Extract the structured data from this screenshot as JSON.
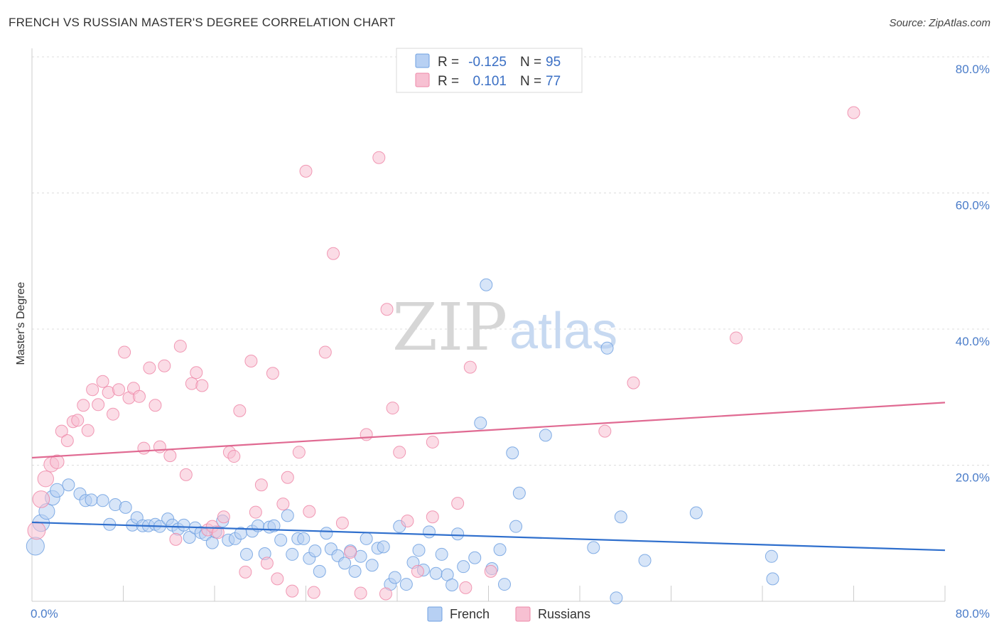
{
  "title": "FRENCH VS RUSSIAN MASTER'S DEGREE CORRELATION CHART",
  "source": "Source: ZipAtlas.com",
  "watermark": {
    "zip": "ZIP",
    "atlas": "atlas"
  },
  "colors": {
    "french": "#6fa0e0",
    "french_fill": "#b7d0f3",
    "french_line": "#2f6fcd",
    "russians": "#ee88a8",
    "russians_fill": "#f7c0d2",
    "russians_line": "#e06a92",
    "tick": "#4a7cc9"
  },
  "legend": {
    "french": {
      "r_label": "R =",
      "r_value": "-0.125",
      "n_label": "N =",
      "n_value": "95"
    },
    "russians": {
      "r_label": "R =",
      "r_value": "0.101",
      "n_label": "N =",
      "n_value": "77"
    }
  },
  "chart_data": {
    "type": "scatter",
    "title": "FRENCH VS RUSSIAN MASTER'S DEGREE CORRELATION CHART",
    "xlabel": "",
    "ylabel": "Master's Degree",
    "xlim": [
      0,
      80
    ],
    "ylim": [
      0,
      80
    ],
    "x_tick_labels": [
      "0.0%",
      "80.0%"
    ],
    "y_ticks": [
      20,
      40,
      60,
      80
    ],
    "y_tick_labels": [
      "20.0%",
      "40.0%",
      "60.0%",
      "80.0%"
    ],
    "grid": true,
    "legend_position": "top-center",
    "series": [
      {
        "name": "French",
        "trend": {
          "x": [
            0,
            80
          ],
          "y": [
            11.6,
            7.5
          ]
        },
        "points": [
          [
            0.3,
            8.1
          ],
          [
            0.8,
            11.5
          ],
          [
            1.3,
            13.2
          ],
          [
            1.8,
            15.2
          ],
          [
            2.2,
            16.3
          ],
          [
            3.2,
            17.1
          ],
          [
            4.2,
            15.8
          ],
          [
            4.7,
            14.8
          ],
          [
            5.2,
            14.9
          ],
          [
            6.2,
            14.8
          ],
          [
            6.8,
            11.3
          ],
          [
            7.3,
            14.2
          ],
          [
            8.2,
            13.8
          ],
          [
            8.8,
            11.2
          ],
          [
            9.2,
            12.3
          ],
          [
            9.7,
            11.1
          ],
          [
            10.2,
            11.1
          ],
          [
            10.8,
            11.3
          ],
          [
            11.2,
            11.0
          ],
          [
            11.9,
            12.1
          ],
          [
            12.3,
            11.2
          ],
          [
            12.8,
            10.6
          ],
          [
            13.3,
            11.2
          ],
          [
            13.8,
            9.4
          ],
          [
            14.3,
            10.8
          ],
          [
            14.8,
            10.1
          ],
          [
            15.2,
            9.8
          ],
          [
            15.8,
            8.6
          ],
          [
            16.1,
            10.2
          ],
          [
            16.7,
            11.8
          ],
          [
            17.2,
            9.0
          ],
          [
            17.8,
            9.2
          ],
          [
            18.3,
            10.0
          ],
          [
            18.8,
            6.9
          ],
          [
            19.3,
            10.3
          ],
          [
            19.8,
            11.1
          ],
          [
            20.4,
            7.0
          ],
          [
            20.8,
            10.9
          ],
          [
            21.2,
            11.1
          ],
          [
            21.8,
            9.0
          ],
          [
            22.4,
            12.6
          ],
          [
            22.8,
            6.9
          ],
          [
            23.3,
            9.2
          ],
          [
            23.8,
            9.2
          ],
          [
            24.3,
            6.3
          ],
          [
            24.8,
            7.4
          ],
          [
            25.2,
            4.4
          ],
          [
            25.8,
            10.0
          ],
          [
            26.2,
            7.7
          ],
          [
            26.8,
            6.7
          ],
          [
            27.4,
            5.6
          ],
          [
            27.9,
            7.4
          ],
          [
            28.3,
            4.4
          ],
          [
            28.8,
            6.6
          ],
          [
            29.3,
            9.2
          ],
          [
            29.8,
            5.3
          ],
          [
            30.3,
            7.8
          ],
          [
            30.8,
            8.0
          ],
          [
            31.4,
            2.5
          ],
          [
            31.8,
            3.5
          ],
          [
            32.2,
            11.0
          ],
          [
            32.8,
            2.5
          ],
          [
            33.4,
            5.7
          ],
          [
            33.9,
            7.5
          ],
          [
            34.3,
            4.6
          ],
          [
            34.8,
            10.2
          ],
          [
            35.4,
            4.1
          ],
          [
            35.9,
            6.9
          ],
          [
            36.4,
            3.9
          ],
          [
            36.8,
            2.4
          ],
          [
            37.3,
            9.9
          ],
          [
            37.8,
            5.1
          ],
          [
            38.8,
            6.4
          ],
          [
            39.3,
            26.2
          ],
          [
            39.8,
            46.5
          ],
          [
            40.3,
            4.8
          ],
          [
            41.0,
            7.6
          ],
          [
            41.4,
            2.5
          ],
          [
            42.1,
            21.8
          ],
          [
            42.4,
            11.0
          ],
          [
            42.7,
            15.9
          ],
          [
            45.0,
            24.4
          ],
          [
            49.2,
            7.9
          ],
          [
            50.4,
            37.2
          ],
          [
            51.2,
            0.5
          ],
          [
            51.6,
            12.4
          ],
          [
            53.7,
            6.0
          ],
          [
            58.2,
            13.0
          ],
          [
            64.8,
            6.6
          ],
          [
            64.9,
            3.3
          ]
        ]
      },
      {
        "name": "Russians",
        "trend": {
          "x": [
            0,
            80
          ],
          "y": [
            21.1,
            29.2
          ]
        },
        "points": [
          [
            0.4,
            10.4
          ],
          [
            0.8,
            15.0
          ],
          [
            1.2,
            18.0
          ],
          [
            1.7,
            20.1
          ],
          [
            2.2,
            20.5
          ],
          [
            2.6,
            25.0
          ],
          [
            3.1,
            23.6
          ],
          [
            3.6,
            26.4
          ],
          [
            4.0,
            26.6
          ],
          [
            4.5,
            28.8
          ],
          [
            4.9,
            25.1
          ],
          [
            5.3,
            31.1
          ],
          [
            5.8,
            28.9
          ],
          [
            6.2,
            32.3
          ],
          [
            6.7,
            30.7
          ],
          [
            7.1,
            27.5
          ],
          [
            7.6,
            31.1
          ],
          [
            8.1,
            36.6
          ],
          [
            8.5,
            29.9
          ],
          [
            8.9,
            31.3
          ],
          [
            9.4,
            30.1
          ],
          [
            9.8,
            22.5
          ],
          [
            10.3,
            34.3
          ],
          [
            10.8,
            28.8
          ],
          [
            11.2,
            22.7
          ],
          [
            11.6,
            34.6
          ],
          [
            12.1,
            21.4
          ],
          [
            12.6,
            9.1
          ],
          [
            13.0,
            37.5
          ],
          [
            13.5,
            18.6
          ],
          [
            14.0,
            32.0
          ],
          [
            14.4,
            33.6
          ],
          [
            14.9,
            31.7
          ],
          [
            15.4,
            10.5
          ],
          [
            15.8,
            11.0
          ],
          [
            16.3,
            10.1
          ],
          [
            16.8,
            12.4
          ],
          [
            17.3,
            21.9
          ],
          [
            17.7,
            21.3
          ],
          [
            18.2,
            28.0
          ],
          [
            18.7,
            4.3
          ],
          [
            19.2,
            35.3
          ],
          [
            19.6,
            13.1
          ],
          [
            20.1,
            17.1
          ],
          [
            20.6,
            5.6
          ],
          [
            21.1,
            33.5
          ],
          [
            21.5,
            3.3
          ],
          [
            22.0,
            14.3
          ],
          [
            22.4,
            18.2
          ],
          [
            22.8,
            1.5
          ],
          [
            23.4,
            21.9
          ],
          [
            24.0,
            63.2
          ],
          [
            24.3,
            13.2
          ],
          [
            24.7,
            1.3
          ],
          [
            25.7,
            36.6
          ],
          [
            26.4,
            51.1
          ],
          [
            27.2,
            11.5
          ],
          [
            27.9,
            7.2
          ],
          [
            28.8,
            1.2
          ],
          [
            29.3,
            24.5
          ],
          [
            30.4,
            65.2
          ],
          [
            31.1,
            42.9
          ],
          [
            31.6,
            28.4
          ],
          [
            32.2,
            21.9
          ],
          [
            32.9,
            11.8
          ],
          [
            33.8,
            4.4
          ],
          [
            35.1,
            23.4
          ],
          [
            35.1,
            12.4
          ],
          [
            37.3,
            14.4
          ],
          [
            38.0,
            2.0
          ],
          [
            38.4,
            34.4
          ],
          [
            40.2,
            4.4
          ],
          [
            50.2,
            25.0
          ],
          [
            52.7,
            32.1
          ],
          [
            61.7,
            38.7
          ],
          [
            72.0,
            71.8
          ],
          [
            31.0,
            1.1
          ]
        ]
      }
    ]
  },
  "bottom_legend": {
    "french": "French",
    "russians": "Russians"
  }
}
